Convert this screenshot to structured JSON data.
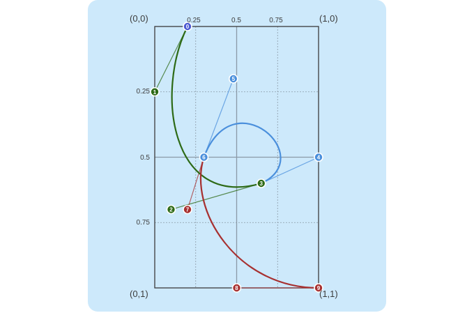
{
  "colors": {
    "panel_bg": "#cde9fb",
    "frame": "#3a3a3a",
    "grid": "#8a9aa6",
    "center_line": "#8b9aa7",
    "green": "#2d6a16",
    "blue": "#4a8fdc",
    "red": "#a73030",
    "purple": "#4b5ad2"
  },
  "corners": {
    "top_left": "(0,0)",
    "top_right": "(1,0)",
    "bottom_left": "(0,1)",
    "bottom_right": "(1,1)"
  },
  "ticks": {
    "top": [
      "0.25",
      "0.5",
      "0.75"
    ],
    "left": [
      "0.25",
      "0.5",
      "0.75"
    ]
  },
  "chart_data": {
    "type": "scatter",
    "xlim": [
      0,
      1
    ],
    "ylim": [
      0,
      1
    ],
    "grid": true,
    "points": [
      {
        "label": "0",
        "x": 0.2,
        "y": 0.0,
        "color": "purple"
      },
      {
        "label": "1",
        "x": 0.0,
        "y": 0.25,
        "color": "green"
      },
      {
        "label": "2",
        "x": 0.1,
        "y": 0.7,
        "color": "green"
      },
      {
        "label": "3",
        "x": 0.65,
        "y": 0.6,
        "color": "green"
      },
      {
        "label": "4",
        "x": 1.0,
        "y": 0.5,
        "color": "blue"
      },
      {
        "label": "5",
        "x": 0.48,
        "y": 0.2,
        "color": "blue"
      },
      {
        "label": "6",
        "x": 0.3,
        "y": 0.5,
        "color": "blue"
      },
      {
        "label": "7",
        "x": 0.2,
        "y": 0.7,
        "color": "red"
      },
      {
        "label": "8",
        "x": 0.5,
        "y": 1.0,
        "color": "red"
      },
      {
        "label": "9",
        "x": 1.0,
        "y": 1.0,
        "color": "red"
      }
    ],
    "handles": [
      {
        "from": "0",
        "to": "1",
        "color": "green"
      },
      {
        "from": "2",
        "to": "3",
        "color": "green"
      },
      {
        "from": "3",
        "to": "4",
        "color": "blue"
      },
      {
        "from": "5",
        "to": "6",
        "color": "blue"
      },
      {
        "from": "6",
        "to": "7",
        "color": "red"
      },
      {
        "from": "8",
        "to": "9",
        "color": "red"
      }
    ],
    "curves": [
      {
        "color": "green",
        "points": [
          "0",
          "1",
          "2",
          "3"
        ]
      },
      {
        "color": "blue",
        "points": [
          "3",
          "4",
          "5",
          "6"
        ]
      },
      {
        "color": "red",
        "points": [
          "6",
          "7",
          "8",
          "9"
        ]
      }
    ]
  }
}
